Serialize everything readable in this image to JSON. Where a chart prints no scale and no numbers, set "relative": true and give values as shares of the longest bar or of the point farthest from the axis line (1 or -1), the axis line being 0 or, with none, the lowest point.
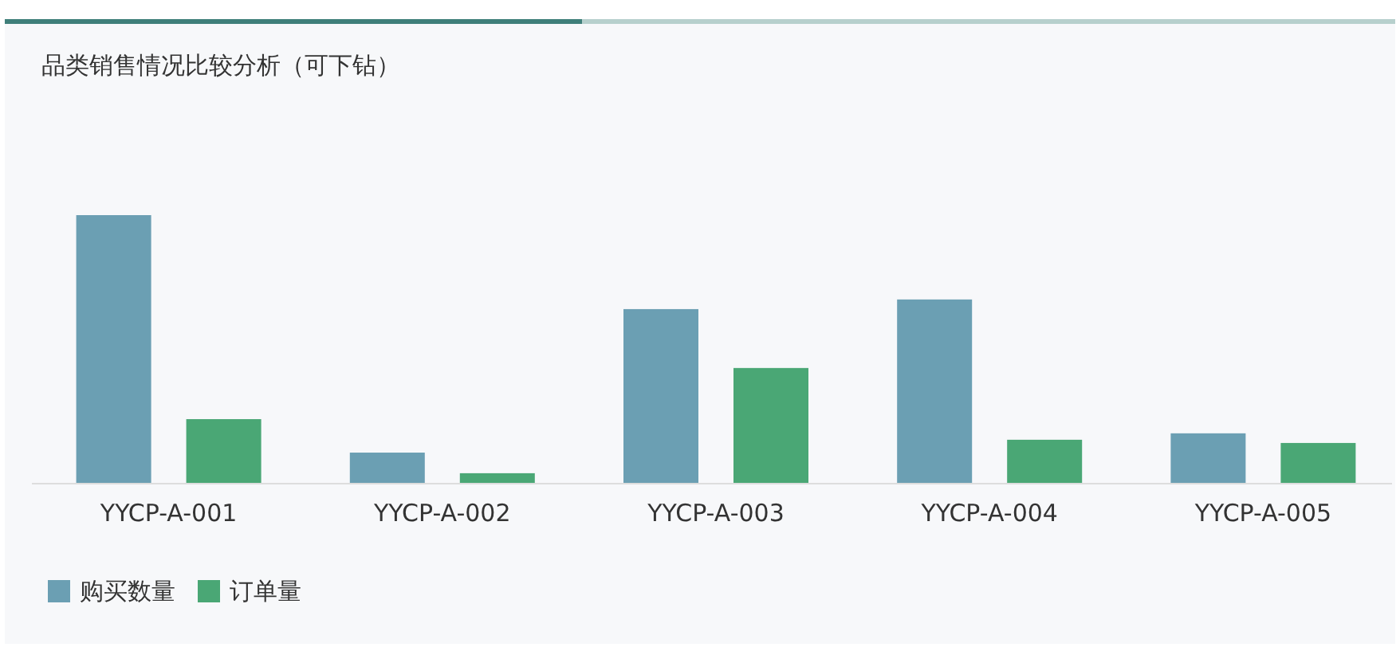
{
  "chart_data": {
    "type": "bar",
    "title": "品类销售情况比较分析（可下钻）",
    "relative": true,
    "legend": "bottom left",
    "categories": [
      "YYCP-A-001",
      "YYCP-A-002",
      "YYCP-A-003",
      "YYCP-A-004",
      "YYCP-A-005"
    ],
    "series": [
      {
        "name": "购买数量",
        "color": "#6b9fb3",
        "values": [
          1,
          0.113,
          0.649,
          0.685,
          0.185
        ]
      },
      {
        "name": "订单量",
        "color": "#4aa775",
        "values": [
          0.238,
          0.036,
          0.429,
          0.161,
          0.149
        ]
      }
    ]
  }
}
